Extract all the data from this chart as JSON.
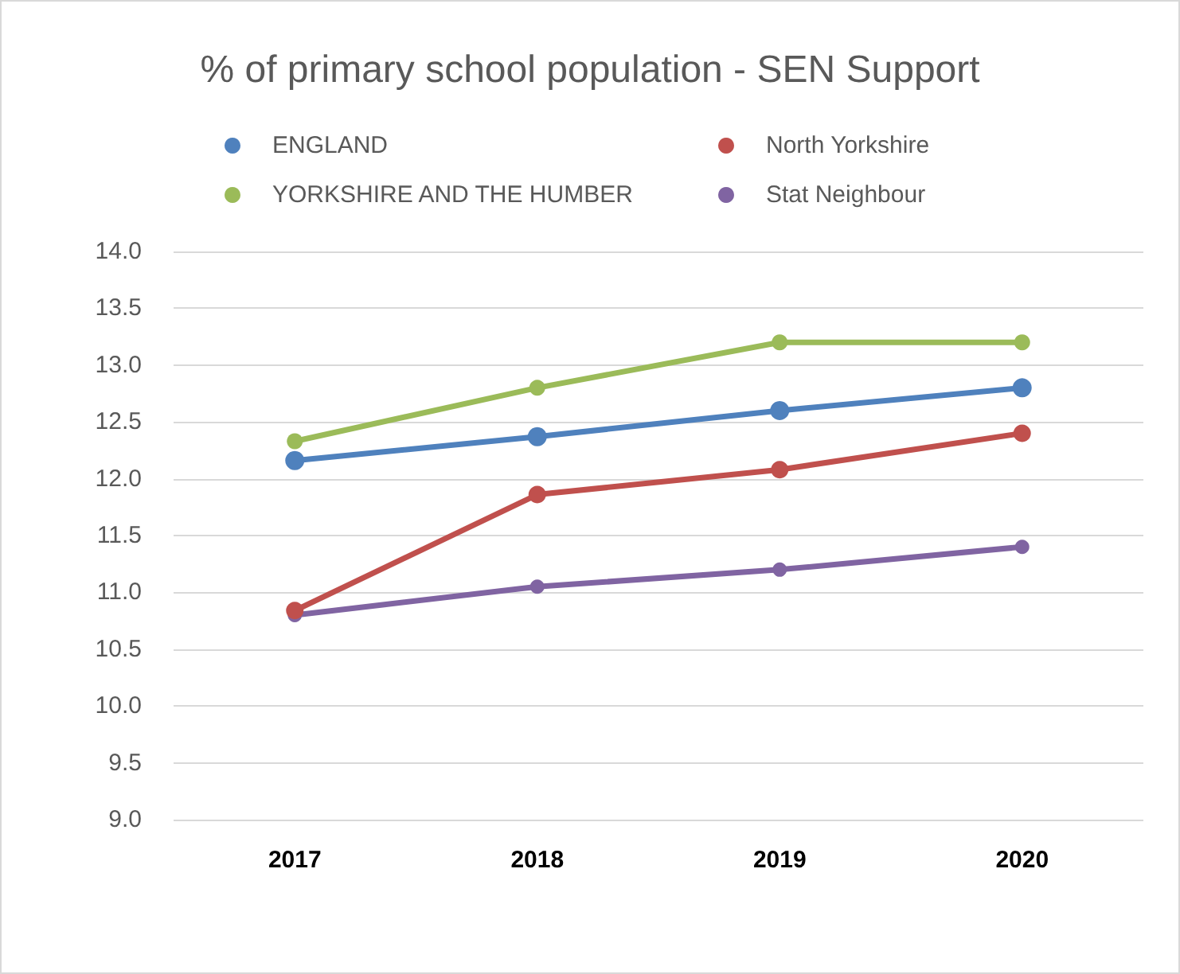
{
  "chart_data": {
    "type": "line",
    "title": "% of primary school population - SEN Support",
    "categories": [
      "2017",
      "2018",
      "2019",
      "2020"
    ],
    "series": [
      {
        "name": "ENGLAND",
        "color": "#4f81bd",
        "values": [
          12.16,
          12.37,
          12.6,
          12.8
        ]
      },
      {
        "name": "North Yorkshire",
        "color": "#c0504d",
        "values": [
          10.84,
          11.86,
          12.08,
          12.4
        ]
      },
      {
        "name": "YORKSHIRE AND THE HUMBER",
        "color": "#9bbb59",
        "values": [
          12.33,
          12.8,
          13.2,
          13.2
        ]
      },
      {
        "name": "Stat Neighbour",
        "color": "#8064a2",
        "values": [
          10.8,
          11.05,
          11.2,
          11.4
        ]
      }
    ],
    "ylim": [
      9,
      14
    ],
    "yticks": [
      {
        "value": 9,
        "label": "9.0"
      },
      {
        "value": 9.5,
        "label": "9.5"
      },
      {
        "value": 10,
        "label": "10.0"
      },
      {
        "value": 10.5,
        "label": "10.5"
      },
      {
        "value": 11,
        "label": "11.0"
      },
      {
        "value": 11.5,
        "label": "11.5"
      },
      {
        "value": 12,
        "label": "12.0"
      },
      {
        "value": 12.5,
        "label": "12.5"
      },
      {
        "value": 13,
        "label": "13.0"
      },
      {
        "value": 13.5,
        "label": "13.5"
      },
      {
        "value": 14,
        "label": "14.0"
      }
    ],
    "grid": "y",
    "legend": "top",
    "marker": "circle",
    "line_style": "solid"
  }
}
